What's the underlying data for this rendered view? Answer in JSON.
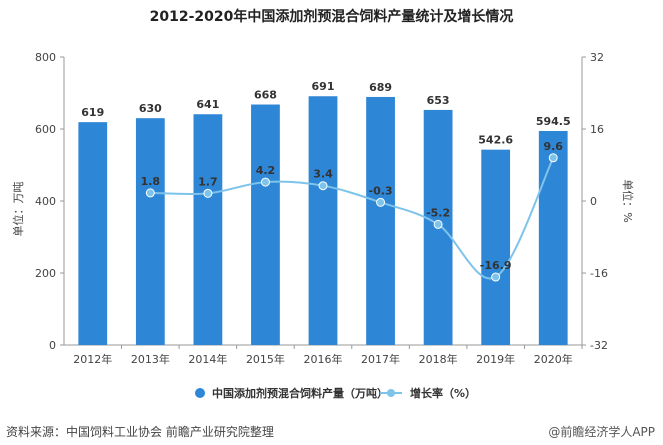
{
  "chart_data": {
    "type": "bar",
    "title": "2012-2020年中国添加剂预混合饲料产量统计及增长情况",
    "categories": [
      "2012年",
      "2013年",
      "2014年",
      "2015年",
      "2016年",
      "2017年",
      "2018年",
      "2019年",
      "2020年"
    ],
    "series": [
      {
        "name": "中国添加剂预混合饲料产量（万吨）",
        "type": "bar",
        "axis": "left",
        "color": "#2e86d6",
        "values": [
          619,
          630,
          641,
          668,
          691,
          689,
          653,
          542.6,
          594.5
        ],
        "labels": [
          "619",
          "630",
          "641",
          "668",
          "691",
          "689",
          "653",
          "542.6",
          "594.5"
        ]
      },
      {
        "name": "增长率（%）",
        "type": "line",
        "axis": "right",
        "color": "#7ec3ea",
        "values": [
          null,
          1.8,
          1.7,
          4.2,
          3.4,
          -0.3,
          -5.2,
          -16.9,
          9.6
        ],
        "labels": [
          "",
          "1.8",
          "1.7",
          "4.2",
          "3.4",
          "-0.3",
          "-5.2",
          "-16.9",
          "9.6"
        ]
      }
    ],
    "ylabel": "单位：万吨",
    "y2label": "单位：%",
    "ylim": [
      0,
      800
    ],
    "y_ticks": [
      "0",
      "200",
      "400",
      "600",
      "800"
    ],
    "y2lim": [
      -32,
      32
    ],
    "y2_ticks": [
      "-32",
      "-16",
      "0",
      "16",
      "32"
    ],
    "grid": false,
    "legend_position": "bottom"
  },
  "footer": {
    "source": "资料来源：中国饲料工业协会 前瞻产业研究院整理",
    "watermark": "@前瞻经济学人APP"
  }
}
